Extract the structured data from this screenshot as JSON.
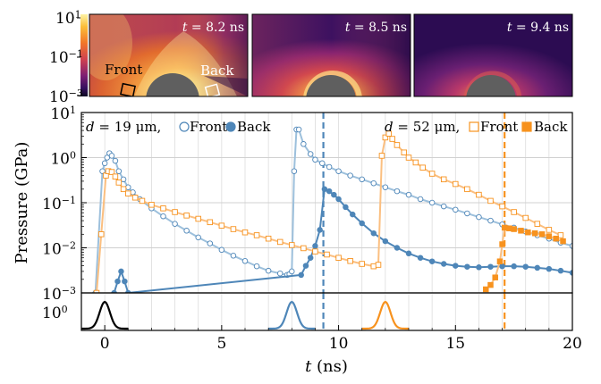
{
  "colorbar": {
    "ticks": [
      {
        "base": "10",
        "exp": "1"
      },
      {
        "base": "10",
        "exp": "−1"
      },
      {
        "base": "10",
        "exp": "−3"
      }
    ]
  },
  "panels": [
    {
      "time_label": "t = 8.2 ns",
      "t_var": "t",
      "t_rest": " = 8.2 ns"
    },
    {
      "time_label": "t = 8.5 ns",
      "t_var": "t",
      "t_rest": " = 8.5 ns"
    },
    {
      "time_label": "t = 9.4 ns",
      "t_var": "t",
      "t_rest": " = 9.4 ns"
    }
  ],
  "probe_labels": {
    "front": "Front",
    "back": "Back"
  },
  "colors": {
    "blue": "#4e86b8",
    "blue_light": "#9dc0dc",
    "orange": "#f7921e",
    "orange_light": "#fbbf80",
    "obstacle": "#5f5f5f",
    "black": "#000000"
  },
  "chart_data": {
    "type": "line",
    "y_scale": "log",
    "xlabel": "t (ns)",
    "ylabel": "Pressure (GPa)",
    "xlim": [
      -1,
      20
    ],
    "ylim": [
      0.001,
      10
    ],
    "xticks": [
      0,
      5,
      10,
      15,
      20
    ],
    "yticks": [
      {
        "value": 10,
        "base": "10",
        "exp": "1"
      },
      {
        "value": 1,
        "base": "10",
        "exp": "0"
      },
      {
        "value": 0.1,
        "base": "10",
        "exp": "−1"
      },
      {
        "value": 0.01,
        "base": "10",
        "exp": "−2"
      },
      {
        "value": 0.001,
        "base": "10",
        "exp": "−3"
      }
    ],
    "grid": true,
    "legends": [
      {
        "placement": "top-left",
        "prefix_var": "d",
        "prefix_rest": " = 19 μm,",
        "entries": [
          {
            "label": "Front",
            "marker": "circle-open",
            "color": "#4e86b8"
          },
          {
            "label": "Back",
            "marker": "circle-filled",
            "color": "#4e86b8"
          }
        ]
      },
      {
        "placement": "top-right",
        "prefix_var": "d",
        "prefix_rest": " = 52 μm,",
        "entries": [
          {
            "label": "Front",
            "marker": "square-open",
            "color": "#f7921e"
          },
          {
            "label": "Back",
            "marker": "square-filled",
            "color": "#f7921e"
          }
        ]
      }
    ],
    "vlines": [
      {
        "x": 9.35,
        "color": "#4e86b8",
        "style": "dashed"
      },
      {
        "x": 17.1,
        "color": "#f7921e",
        "style": "dashed"
      }
    ],
    "series": [
      {
        "name": "Front",
        "group": "d = 19 μm",
        "marker": "circle-open",
        "color": "#9dc0dc",
        "marker_color": "#4e86b8",
        "x": [
          -0.4,
          -0.1,
          0,
          0.1,
          0.2,
          0.3,
          0.45,
          0.6,
          0.8,
          1.0,
          1.2,
          1.5,
          2,
          2.5,
          3,
          3.5,
          4,
          4.5,
          5,
          5.5,
          6,
          6.5,
          7,
          7.5,
          7.8,
          7.9,
          8.0,
          8.1,
          8.2,
          8.3,
          8.5,
          8.8,
          9.0,
          9.3,
          9.6,
          10,
          10.5,
          11,
          11.5,
          12,
          12.5,
          13,
          13.5,
          14,
          14.5,
          15,
          15.5,
          16,
          16.5,
          17,
          17.5,
          18,
          18.5,
          19,
          19.5,
          20
        ],
        "y": [
          0.001,
          0.5,
          0.75,
          1.0,
          1.25,
          1.1,
          0.85,
          0.5,
          0.33,
          0.22,
          0.17,
          0.12,
          0.075,
          0.05,
          0.034,
          0.024,
          0.017,
          0.0125,
          0.009,
          0.0067,
          0.0051,
          0.0039,
          0.0031,
          0.0027,
          0.0025,
          0.0026,
          0.003,
          0.5,
          4.2,
          4.2,
          2.0,
          1.2,
          0.9,
          0.75,
          0.62,
          0.5,
          0.4,
          0.33,
          0.27,
          0.22,
          0.18,
          0.15,
          0.12,
          0.1,
          0.083,
          0.07,
          0.058,
          0.048,
          0.04,
          0.033,
          0.028,
          0.023,
          0.019,
          0.016,
          0.013,
          0.011
        ]
      },
      {
        "name": "Back",
        "group": "d = 19 μm",
        "marker": "circle-filled",
        "color": "#4e86b8",
        "marker_color": "#4e86b8",
        "x": [
          0.4,
          0.55,
          0.7,
          0.85,
          1.0,
          8.4,
          8.6,
          8.8,
          9.0,
          9.2,
          9.4,
          9.6,
          9.8,
          10,
          10.3,
          10.6,
          11,
          11.5,
          12,
          12.5,
          13,
          13.5,
          14,
          14.5,
          15,
          15.5,
          16,
          16.5,
          17,
          17.5,
          18,
          18.5,
          19,
          19.5,
          20
        ],
        "y": [
          0.001,
          0.0018,
          0.003,
          0.0018,
          0.001,
          0.0025,
          0.004,
          0.006,
          0.011,
          0.025,
          0.2,
          0.18,
          0.15,
          0.12,
          0.08,
          0.055,
          0.035,
          0.021,
          0.014,
          0.01,
          0.0075,
          0.006,
          0.005,
          0.0044,
          0.004,
          0.0038,
          0.0037,
          0.0038,
          0.0039,
          0.0039,
          0.0038,
          0.0036,
          0.0034,
          0.0031,
          0.0028
        ]
      },
      {
        "name": "Front",
        "group": "d = 52 μm",
        "marker": "square-open",
        "color": "#fbbf80",
        "marker_color": "#f7921e",
        "x": [
          -0.35,
          -0.15,
          0.05,
          0.15,
          0.3,
          0.45,
          0.6,
          0.8,
          1.0,
          1.3,
          1.6,
          2,
          2.5,
          3,
          3.5,
          4,
          4.5,
          5,
          5.5,
          6,
          6.5,
          7,
          7.5,
          8,
          8.5,
          9,
          9.5,
          10,
          10.5,
          11,
          11.5,
          11.7,
          11.85,
          12.0,
          12.15,
          12.3,
          12.5,
          12.8,
          13.0,
          13.3,
          13.6,
          14,
          14.5,
          15,
          15.5,
          16,
          16.5,
          17,
          17.5,
          18,
          18.5,
          19,
          19.5
        ],
        "y": [
          0.001,
          0.02,
          0.4,
          0.5,
          0.48,
          0.38,
          0.28,
          0.2,
          0.16,
          0.13,
          0.11,
          0.09,
          0.075,
          0.062,
          0.052,
          0.044,
          0.037,
          0.031,
          0.026,
          0.022,
          0.019,
          0.016,
          0.0135,
          0.0115,
          0.0098,
          0.0083,
          0.0071,
          0.006,
          0.0051,
          0.0044,
          0.0039,
          0.0042,
          1.1,
          2.8,
          3.4,
          2.6,
          1.9,
          1.3,
          1.0,
          0.78,
          0.6,
          0.44,
          0.33,
          0.26,
          0.2,
          0.15,
          0.11,
          0.083,
          0.062,
          0.046,
          0.034,
          0.025,
          0.019
        ]
      },
      {
        "name": "Back",
        "group": "d = 52 μm",
        "marker": "square-filled",
        "color": "#fbbf80",
        "marker_color": "#f7921e",
        "x": [
          16.3,
          16.5,
          16.7,
          16.9,
          17.0,
          17.1,
          17.3,
          17.5,
          17.8,
          18.1,
          18.4,
          18.7,
          19.0,
          19.3,
          19.6
        ],
        "y": [
          0.0012,
          0.0015,
          0.0022,
          0.005,
          0.012,
          0.028,
          0.027,
          0.026,
          0.024,
          0.022,
          0.021,
          0.02,
          0.018,
          0.016,
          0.014
        ]
      }
    ],
    "pulses": [
      {
        "center": 0,
        "color": "#000000"
      },
      {
        "center": 8,
        "color": "#4e86b8"
      },
      {
        "center": 12,
        "color": "#f7921e"
      }
    ]
  }
}
